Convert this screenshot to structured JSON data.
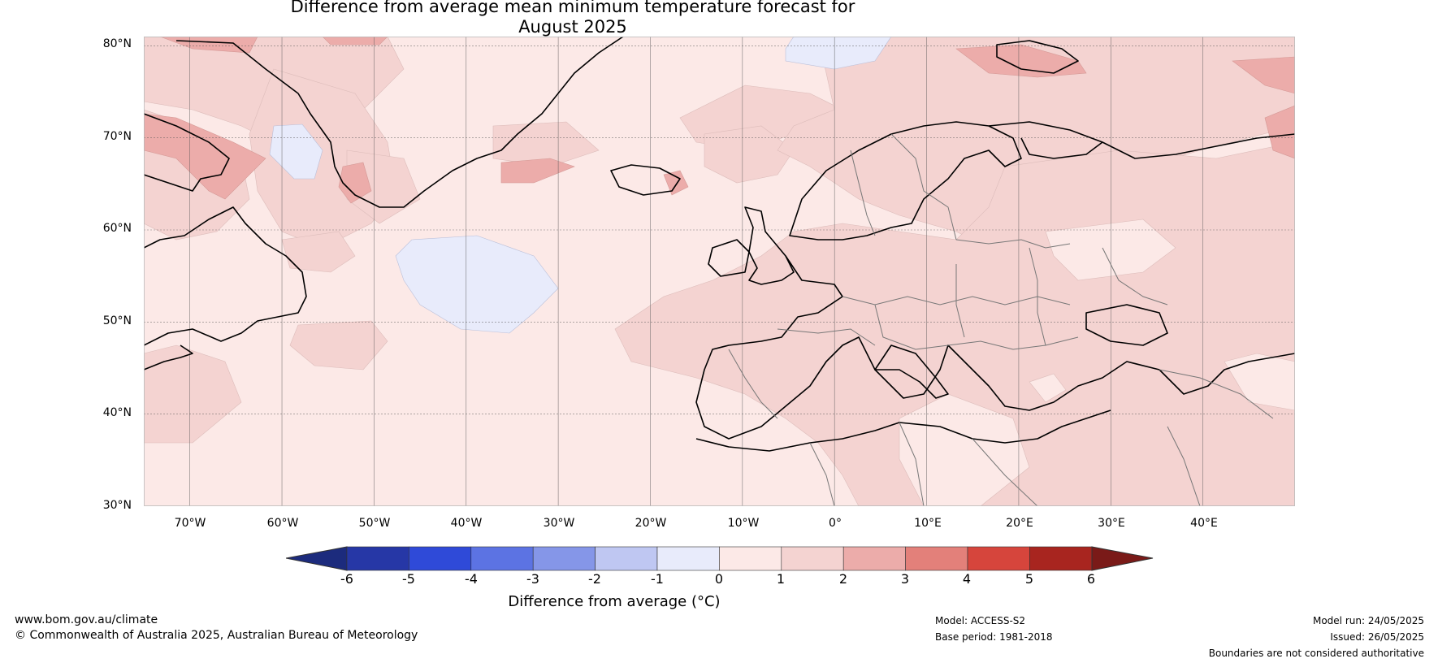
{
  "title": {
    "line1": "Difference from average mean minimum temperature forecast for",
    "line2": "August 2025"
  },
  "map": {
    "latitude_labels": [
      "80°N",
      "70°N",
      "60°N",
      "50°N",
      "40°N",
      "30°N"
    ],
    "longitude_labels": [
      "70°W",
      "60°W",
      "50°W",
      "40°W",
      "30°W",
      "20°W",
      "10°W",
      "0°",
      "10°E",
      "20°E",
      "30°E",
      "40°E"
    ],
    "extent": {
      "lon_min": -75,
      "lon_max": 50,
      "lat_min": 30,
      "lat_max": 81
    },
    "background_category": "0 to 1"
  },
  "colorbar": {
    "label": "Difference from average (°C)",
    "ticks": [
      "-6",
      "-5",
      "-4",
      "-3",
      "-2",
      "-1",
      "0",
      "1",
      "2",
      "3",
      "4",
      "5",
      "6"
    ],
    "colors": [
      "#1c2b7d",
      "#2637a6",
      "#2f4ad8",
      "#5c73e3",
      "#8596e8",
      "#bfc7f2",
      "#e8ebfb",
      "#fce9e7",
      "#f4d3d1",
      "#ecacaa",
      "#e3807a",
      "#d6453c",
      "#a8251f",
      "#7a1a18"
    ]
  },
  "footer": {
    "website": "www.bom.gov.au/climate",
    "copyright": "© Commonwealth of Australia 2025, Australian Bureau of Meteorology",
    "model": "Model: ACCESS-S2",
    "base_period": "Base period: 1981-2018",
    "model_run": "Model run: 24/05/2025",
    "issued": "Issued: 26/05/2025",
    "disclaimer": "Boundaries are not considered authoritative"
  }
}
